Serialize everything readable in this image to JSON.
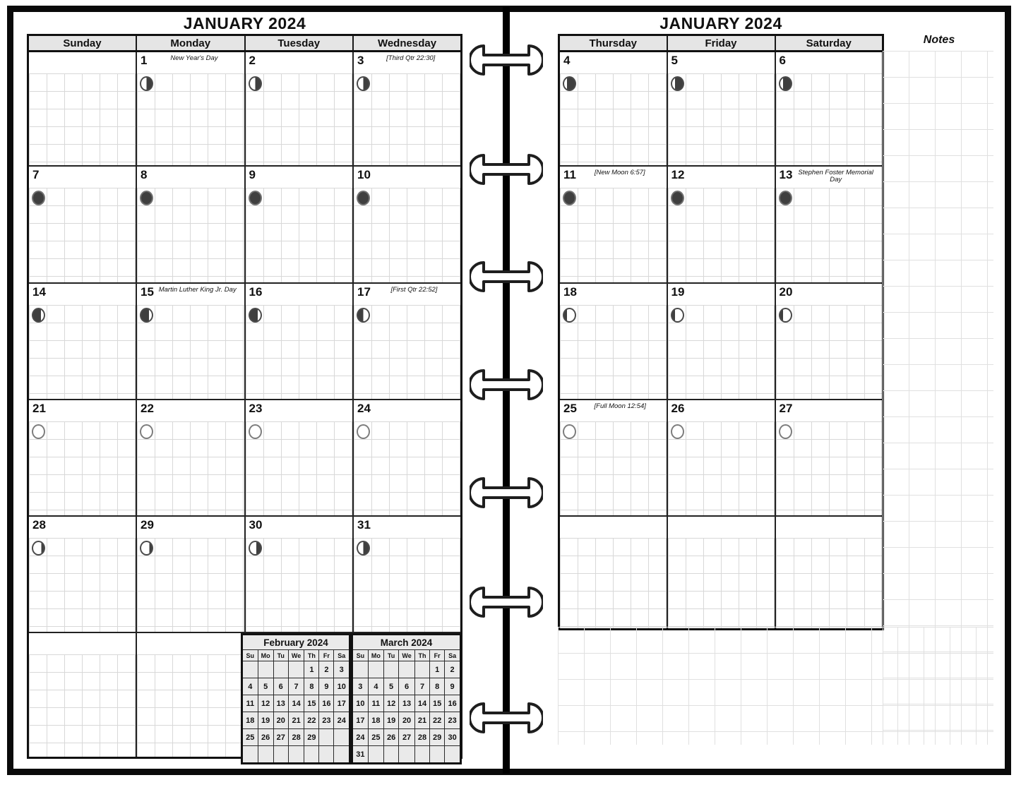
{
  "left_page": {
    "title": "JANUARY 2024",
    "day_headers": [
      "Sunday",
      "Monday",
      "Tuesday",
      "Wednesday"
    ],
    "weeks": [
      [
        {},
        {
          "day": "1",
          "note": "New Year's Day",
          "moon": "waning-gibbous"
        },
        {
          "day": "2",
          "moon": "waning-gibbous"
        },
        {
          "day": "3",
          "note": "[Third Qtr 22:30]",
          "moon": "waning-gibbous"
        }
      ],
      [
        {
          "day": "7",
          "moon": "new"
        },
        {
          "day": "8",
          "moon": "new"
        },
        {
          "day": "9",
          "moon": "new"
        },
        {
          "day": "10",
          "moon": "new"
        }
      ],
      [
        {
          "day": "14",
          "moon": "waxing-crescent"
        },
        {
          "day": "15",
          "note": "Martin Luther King Jr. Day",
          "moon": "waxing-crescent"
        },
        {
          "day": "16",
          "moon": "waxing-crescent"
        },
        {
          "day": "17",
          "note": "[First Qtr 22:52]",
          "moon": "first-quarter"
        }
      ],
      [
        {
          "day": "21",
          "moon": "full"
        },
        {
          "day": "22",
          "moon": "full"
        },
        {
          "day": "23",
          "moon": "full"
        },
        {
          "day": "24",
          "moon": "full"
        }
      ],
      [
        {
          "day": "28",
          "moon": "waning-slight"
        },
        {
          "day": "29",
          "moon": "waning-slight"
        },
        {
          "day": "30",
          "moon": "waning-quarter"
        },
        {
          "day": "31",
          "moon": "waning-gibbous"
        }
      ],
      [
        {},
        {},
        {
          "mini": 0
        },
        {
          "mini": 1
        }
      ]
    ]
  },
  "right_page": {
    "title": "JANUARY 2024",
    "notes_label": "Notes",
    "day_headers": [
      "Thursday",
      "Friday",
      "Saturday"
    ],
    "weeks": [
      [
        {
          "day": "4",
          "moon": "waning-crescent"
        },
        {
          "day": "5",
          "moon": "waning-crescent"
        },
        {
          "day": "6",
          "moon": "waning-crescent"
        }
      ],
      [
        {
          "day": "11",
          "note": "[New Moon 6:57]",
          "moon": "new"
        },
        {
          "day": "12",
          "moon": "new"
        },
        {
          "day": "13",
          "note": "Stephen Foster Memorial Day",
          "moon": "new"
        }
      ],
      [
        {
          "day": "18",
          "moon": "waxing-gibbous"
        },
        {
          "day": "19",
          "moon": "waxing-gibbous"
        },
        {
          "day": "20",
          "moon": "waxing-gibbous"
        }
      ],
      [
        {
          "day": "25",
          "note": "[Full Moon 12:54]",
          "moon": "full"
        },
        {
          "day": "26",
          "moon": "full"
        },
        {
          "day": "27",
          "moon": "full"
        }
      ],
      [
        {},
        {},
        {}
      ]
    ]
  },
  "mini_calendars": [
    {
      "title": "February 2024",
      "day_headers": [
        "Su",
        "Mo",
        "Tu",
        "We",
        "Th",
        "Fr",
        "Sa"
      ],
      "rows": [
        [
          "",
          "",
          "",
          "",
          "1",
          "2",
          "3"
        ],
        [
          "4",
          "5",
          "6",
          "7",
          "8",
          "9",
          "10"
        ],
        [
          "11",
          "12",
          "13",
          "14",
          "15",
          "16",
          "17"
        ],
        [
          "18",
          "19",
          "20",
          "21",
          "22",
          "23",
          "24"
        ],
        [
          "25",
          "26",
          "27",
          "28",
          "29",
          "",
          ""
        ],
        [
          "",
          "",
          "",
          "",
          "",
          "",
          ""
        ]
      ]
    },
    {
      "title": "March 2024",
      "day_headers": [
        "Su",
        "Mo",
        "Tu",
        "We",
        "Th",
        "Fr",
        "Sa"
      ],
      "rows": [
        [
          "",
          "",
          "",
          "",
          "",
          "1",
          "2"
        ],
        [
          "3",
          "4",
          "5",
          "6",
          "7",
          "8",
          "9"
        ],
        [
          "10",
          "11",
          "12",
          "13",
          "14",
          "15",
          "16"
        ],
        [
          "17",
          "18",
          "19",
          "20",
          "21",
          "22",
          "23"
        ],
        [
          "24",
          "25",
          "26",
          "27",
          "28",
          "29",
          "30"
        ],
        [
          "31",
          "",
          "",
          "",
          "",
          "",
          ""
        ]
      ]
    }
  ],
  "colors": {
    "ink": "#111111",
    "header_fill": "#e5e5e5",
    "cell_grid_line": "#d8d8d8",
    "notes_grid_line": "#e0e0e0",
    "moon_dark": "#3f3f3f"
  }
}
